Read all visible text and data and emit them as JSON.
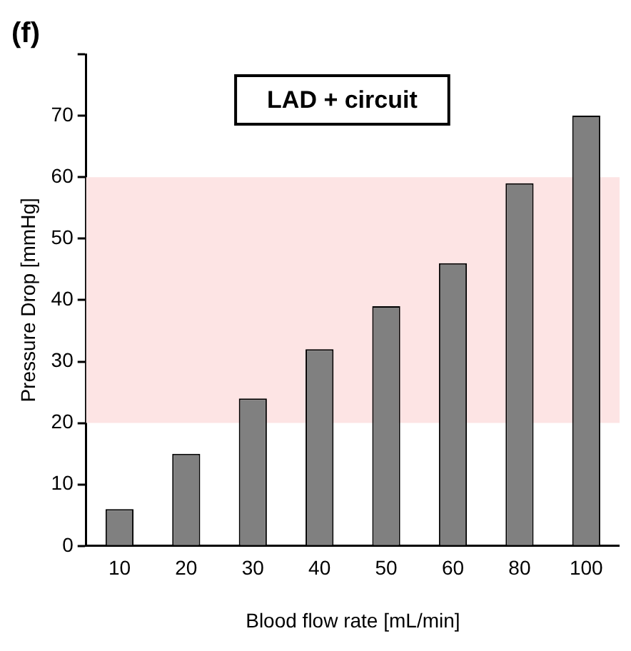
{
  "chart_data": {
    "type": "bar",
    "title": "(f)",
    "xlabel": "Blood flow rate [mL/min]",
    "ylabel": "Pressure Drop [mmHg]",
    "categories": [
      "10",
      "20",
      "30",
      "40",
      "50",
      "60",
      "80",
      "100"
    ],
    "values": [
      6,
      15,
      24,
      32,
      39,
      46,
      59,
      70
    ],
    "color": "#808080",
    "ylim": [
      0,
      80
    ],
    "yticks": [
      0,
      10,
      20,
      30,
      40,
      50,
      60,
      70,
      {
        "value": 80,
        "label": null
      }
    ],
    "bands": [
      {
        "axis": "y",
        "from": 20,
        "to": 60,
        "color": "#fde4e4"
      }
    ],
    "annotations": [
      "LAD + circuit"
    ],
    "grid": false,
    "legend": false
  }
}
